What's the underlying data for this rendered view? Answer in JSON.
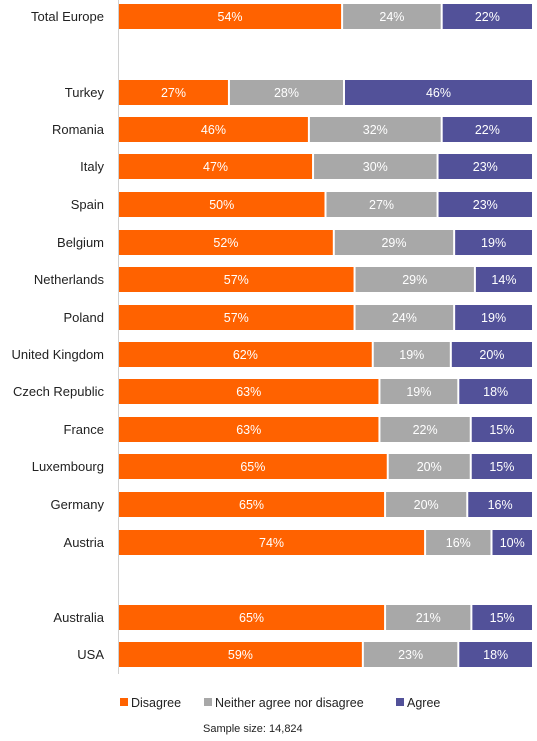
{
  "chart_data": {
    "type": "bar",
    "orientation": "horizontal",
    "stacked": true,
    "percent_stacked": true,
    "categories": [
      "Total Europe",
      "Turkey",
      "Romania",
      "Italy",
      "Spain",
      "Belgium",
      "Netherlands",
      "Poland",
      "United Kingdom",
      "Czech Republic",
      "France",
      "Luxembourg",
      "Germany",
      "Austria",
      "Australia",
      "USA"
    ],
    "series": [
      {
        "name": "Disagree",
        "color": "#ff6200",
        "values": [
          54,
          27,
          46,
          47,
          50,
          52,
          57,
          57,
          62,
          63,
          63,
          65,
          65,
          74,
          65,
          59
        ]
      },
      {
        "name": "Neither agree nor disagree",
        "color": "#a8a8a8",
        "values": [
          24,
          28,
          32,
          30,
          27,
          29,
          29,
          24,
          19,
          19,
          22,
          20,
          20,
          16,
          21,
          23
        ]
      },
      {
        "name": "Agree",
        "color": "#525199",
        "values": [
          22,
          46,
          22,
          23,
          23,
          19,
          14,
          19,
          20,
          18,
          15,
          15,
          16,
          10,
          15,
          18
        ]
      }
    ],
    "value_suffix": "%",
    "legend_position": "bottom",
    "grid": false,
    "note": "Sample size: 14,824"
  }
}
